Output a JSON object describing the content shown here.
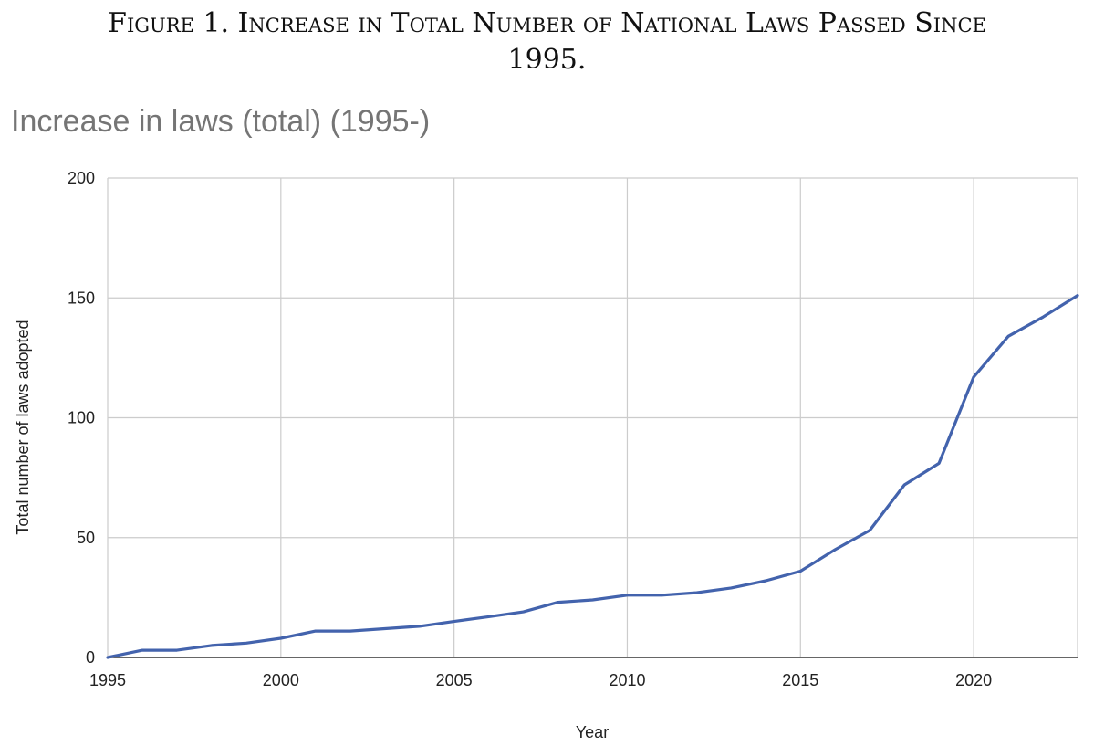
{
  "caption": {
    "line1": "Figure 1. Increase in Total Number of National Laws Passed Since",
    "line2": "1995."
  },
  "chart_data": {
    "type": "line",
    "title": "Increase in laws (total) (1995-)",
    "xlabel": "Year",
    "ylabel": "Total number of laws adopted",
    "xlim": [
      1995,
      2023
    ],
    "ylim": [
      0,
      200
    ],
    "x_ticks": [
      1995,
      2000,
      2005,
      2010,
      2015,
      2020
    ],
    "y_ticks": [
      0,
      50,
      100,
      150,
      200
    ],
    "grid": true,
    "legend": "none",
    "series": [
      {
        "color": "#4363ad",
        "x": [
          1995,
          1996,
          1997,
          1998,
          1999,
          2000,
          2001,
          2002,
          2003,
          2004,
          2005,
          2006,
          2007,
          2008,
          2009,
          2010,
          2011,
          2012,
          2013,
          2014,
          2015,
          2016,
          2017,
          2018,
          2019,
          2020,
          2021,
          2022,
          2023
        ],
        "y": [
          0,
          3,
          3,
          5,
          6,
          8,
          11,
          11,
          12,
          13,
          15,
          17,
          19,
          23,
          24,
          26,
          26,
          27,
          29,
          32,
          36,
          45,
          53,
          72,
          81,
          117,
          134,
          142,
          151
        ]
      }
    ]
  }
}
